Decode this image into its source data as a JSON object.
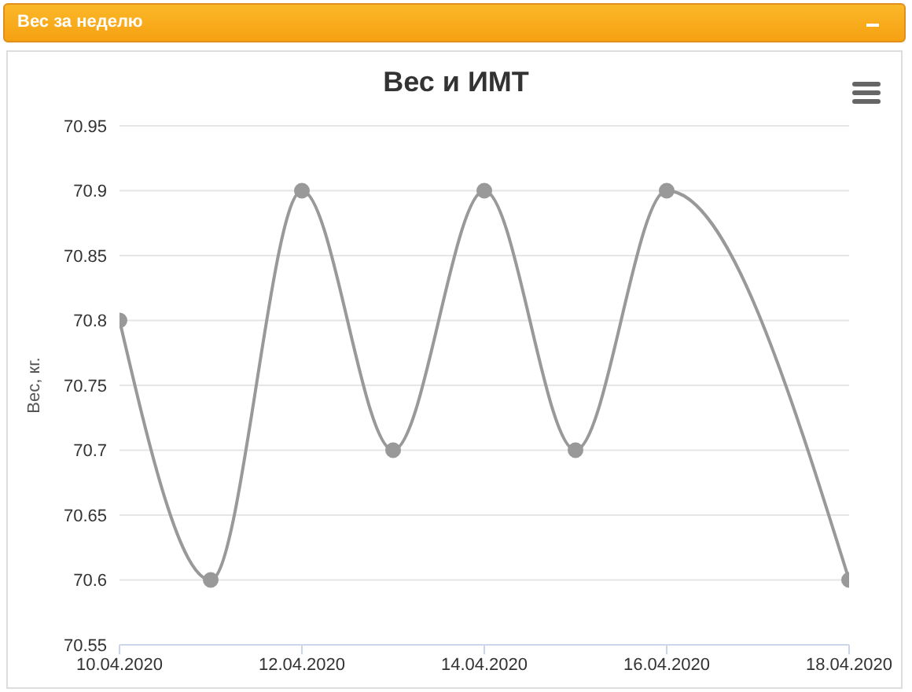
{
  "chart_data": {
    "type": "line",
    "title": "Вес и ИМТ",
    "ylabel": "Вес, кг.",
    "annotations": [
      "Вес за неделю"
    ],
    "x": [
      "2020-04-10",
      "2020-04-11",
      "2020-04-12",
      "2020-04-13",
      "2020-04-14",
      "2020-04-15",
      "2020-04-16",
      "2020-04-18"
    ],
    "series": [
      {
        "color": "#999999",
        "values": [
          70.8,
          70.6,
          70.9,
          70.7,
          70.9,
          70.7,
          70.9,
          70.6
        ]
      }
    ],
    "xlim": [
      "2020-04-10",
      "2020-04-18"
    ],
    "xticks": [
      {
        "value": "2020-04-10",
        "label": "10.04.2020"
      },
      {
        "value": "2020-04-12",
        "label": "12.04.2020"
      },
      {
        "value": "2020-04-14",
        "label": "14.04.2020"
      },
      {
        "value": "2020-04-16",
        "label": "16.04.2020"
      },
      {
        "value": "2020-04-18",
        "label": "18.04.2020"
      }
    ],
    "ylim": [
      70.55,
      70.95
    ],
    "yticks": [
      70.55,
      70.6,
      70.65,
      70.7,
      70.75,
      70.8,
      70.85,
      70.9,
      70.95
    ],
    "grid": "y",
    "legend": false,
    "marker": "circle",
    "line_style": "solid"
  }
}
